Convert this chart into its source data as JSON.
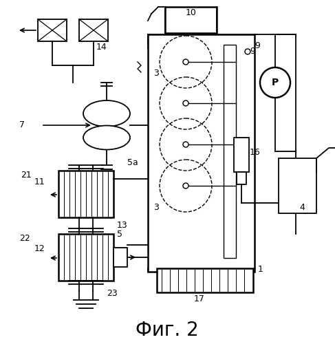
{
  "title": "Фиг. 2",
  "bg": "#ffffff",
  "lc": "#000000",
  "title_fontsize": 20
}
